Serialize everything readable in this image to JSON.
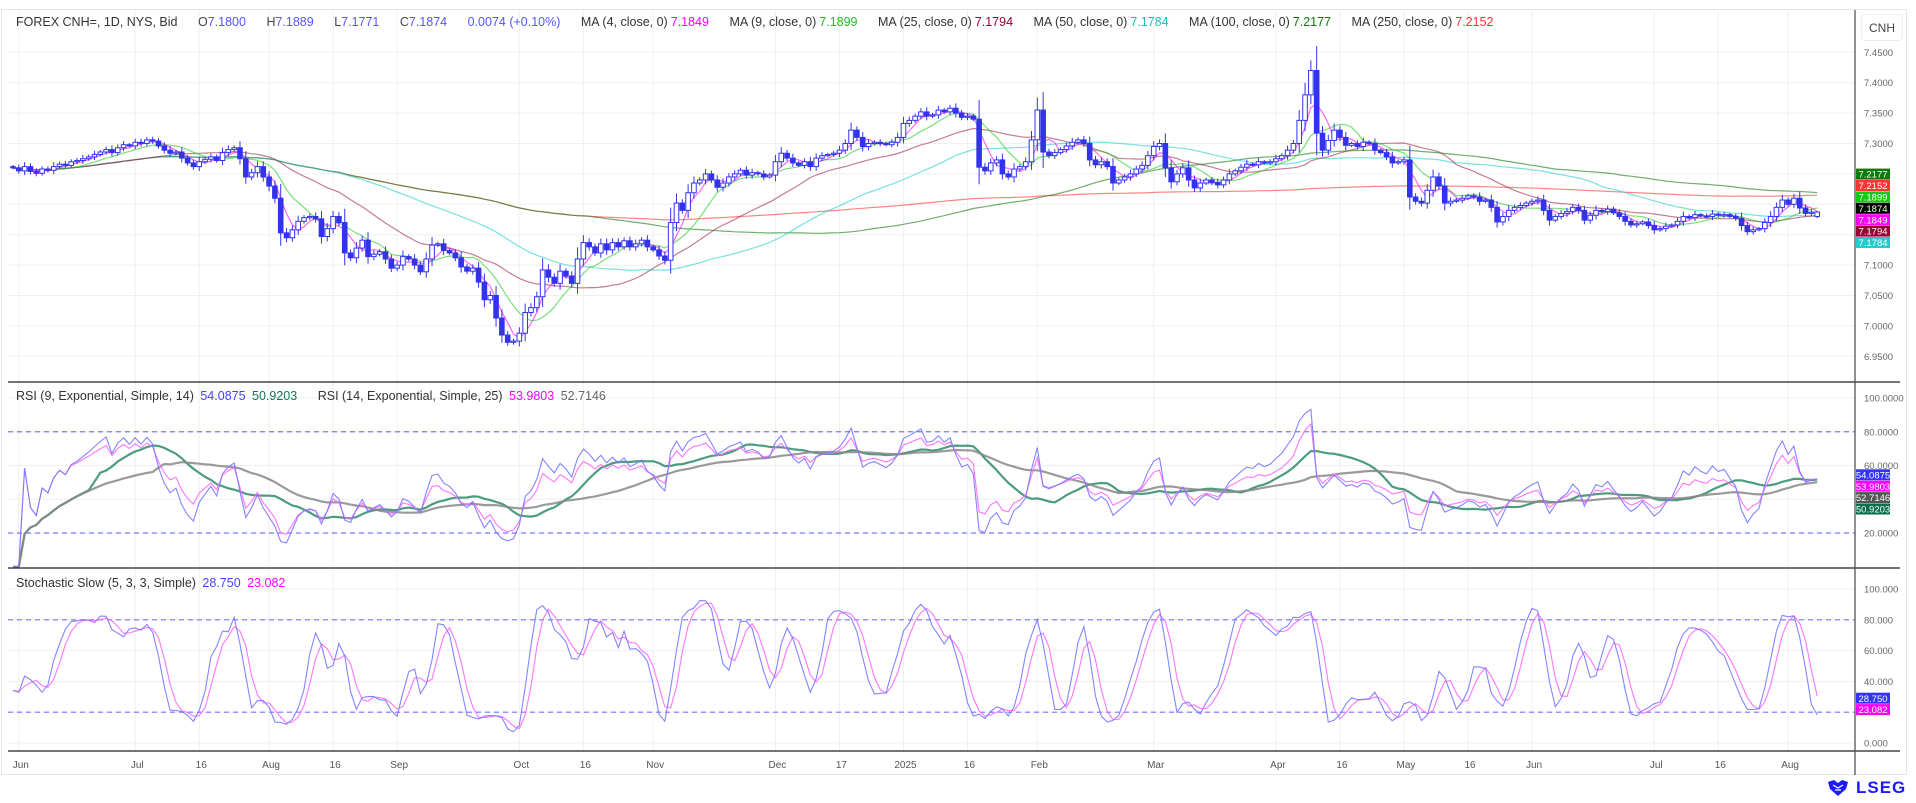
{
  "legend": {
    "symbol": "FOREX CNH=, 1D, NYS, Bid",
    "open_label": "O",
    "open": "7.1800",
    "high_label": "H",
    "high": "7.1889",
    "low_label": "L",
    "low": "7.1771",
    "close_label": "C",
    "close": "7.1874",
    "change": "0.0074 (+0.10%)",
    "ma": [
      {
        "label": "MA (4, close, 0)",
        "value": "7.1849",
        "color": "#ff00ff"
      },
      {
        "label": "MA (9, close, 0)",
        "value": "7.1899",
        "color": "#22cc22"
      },
      {
        "label": "MA (25, close, 0)",
        "value": "7.1794",
        "color": "#990033"
      },
      {
        "label": "MA (50, close, 0)",
        "value": "7.1784",
        "color": "#22cccc"
      },
      {
        "label": "MA (100, close, 0)",
        "value": "7.2177",
        "color": "#117711"
      },
      {
        "label": "MA (250, close, 0)",
        "value": "7.2152",
        "color": "#ff3333"
      }
    ],
    "rsi": [
      {
        "label": "RSI (9, Exponential, Simple, 14)",
        "value": "54.0875",
        "value_color": "#4444ff",
        "signal": "50.9203",
        "signal_color": "#0b7a55"
      },
      {
        "label": "RSI (14, Exponential, Simple, 25)",
        "value": "53.9803",
        "value_color": "#ff00ff",
        "signal": "52.7146",
        "signal_color": "#666666"
      }
    ],
    "stoch": {
      "label": "Stochastic Slow (5, 3, 3, Simple)",
      "k": "28.750",
      "k_color": "#4444ff",
      "d": "23.082",
      "d_color": "#ff00ff"
    }
  },
  "currency_button": "CNH",
  "logo_text": "LSEG",
  "chart_data": {
    "type": "candlestick",
    "xlim": [
      "2024-05-31",
      "2025-08-08"
    ],
    "price_ylim": [
      6.93,
      7.47
    ],
    "price_ticks": [
      "7.4500",
      "7.4000",
      "7.3500",
      "7.3000",
      "7.1000",
      "7.0500",
      "7.0000",
      "6.9500"
    ],
    "last_bar": {
      "open": 7.18,
      "high": 7.1889,
      "low": 7.1771,
      "close": 7.1874
    },
    "up_color": "#ffffff",
    "down_color": "#3333ee",
    "close": [
      7.26,
      7.255,
      7.262,
      7.254,
      7.251,
      7.258,
      7.256,
      7.262,
      7.266,
      7.264,
      7.27,
      7.272,
      7.275,
      7.278,
      7.282,
      7.286,
      7.29,
      7.285,
      7.293,
      7.298,
      7.296,
      7.302,
      7.3,
      7.306,
      7.304,
      7.296,
      7.289,
      7.284,
      7.286,
      7.276,
      7.268,
      7.262,
      7.27,
      7.274,
      7.278,
      7.272,
      7.285,
      7.29,
      7.293,
      7.275,
      7.245,
      7.252,
      7.262,
      7.245,
      7.23,
      7.21,
      7.153,
      7.145,
      7.158,
      7.172,
      7.178,
      7.18,
      7.176,
      7.147,
      7.16,
      7.18,
      7.17,
      7.12,
      7.112,
      7.128,
      7.141,
      7.114,
      7.118,
      7.122,
      7.11,
      7.095,
      7.1,
      7.114,
      7.11,
      7.1,
      7.089,
      7.11,
      7.133,
      7.135,
      7.124,
      7.12,
      7.112,
      7.097,
      7.09,
      7.095,
      7.072,
      7.043,
      7.05,
      7.013,
      6.985,
      6.973,
      6.975,
      6.988,
      7.022,
      7.03,
      7.048,
      7.092,
      7.08,
      7.07,
      7.09,
      7.082,
      7.07,
      7.11,
      7.137,
      7.13,
      7.12,
      7.135,
      7.125,
      7.137,
      7.13,
      7.14,
      7.13,
      7.135,
      7.141,
      7.13,
      7.125,
      7.115,
      7.108,
      7.17,
      7.202,
      7.19,
      7.219,
      7.235,
      7.24,
      7.25,
      7.24,
      7.228,
      7.235,
      7.245,
      7.25,
      7.256,
      7.248,
      7.252,
      7.25,
      7.245,
      7.248,
      7.27,
      7.284,
      7.276,
      7.268,
      7.264,
      7.27,
      7.262,
      7.276,
      7.28,
      7.282,
      7.284,
      7.289,
      7.3,
      7.322,
      7.31,
      7.295,
      7.3,
      7.302,
      7.3,
      7.298,
      7.302,
      7.31,
      7.333,
      7.338,
      7.345,
      7.352,
      7.345,
      7.347,
      7.355,
      7.352,
      7.358,
      7.35,
      7.343,
      7.345,
      7.34,
      7.261,
      7.255,
      7.268,
      7.273,
      7.25,
      7.245,
      7.258,
      7.262,
      7.27,
      7.306,
      7.355,
      7.286,
      7.28,
      7.285,
      7.29,
      7.296,
      7.302,
      7.306,
      7.3,
      7.273,
      7.265,
      7.27,
      7.262,
      7.235,
      7.24,
      7.245,
      7.25,
      7.258,
      7.264,
      7.28,
      7.295,
      7.3,
      7.26,
      7.237,
      7.25,
      7.26,
      7.24,
      7.227,
      7.235,
      7.24,
      7.236,
      7.232,
      7.24,
      7.25,
      7.255,
      7.261,
      7.266,
      7.265,
      7.27,
      7.268,
      7.27,
      7.275,
      7.28,
      7.289,
      7.3,
      7.338,
      7.38,
      7.42,
      7.317,
      7.289,
      7.305,
      7.322,
      7.31,
      7.297,
      7.3,
      7.295,
      7.302,
      7.3,
      7.289,
      7.285,
      7.278,
      7.268,
      7.27,
      7.273,
      7.212,
      7.205,
      7.202,
      7.223,
      7.245,
      7.23,
      7.202,
      7.205,
      7.207,
      7.21,
      7.214,
      7.212,
      7.205,
      7.207,
      7.195,
      7.171,
      7.18,
      7.19,
      7.195,
      7.198,
      7.202,
      7.205,
      7.207,
      7.19,
      7.174,
      7.18,
      7.185,
      7.188,
      7.195,
      7.19,
      7.174,
      7.182,
      7.19,
      7.188,
      7.192,
      7.186,
      7.18,
      7.172,
      7.166,
      7.168,
      7.171,
      7.165,
      7.158,
      7.16,
      7.164,
      7.166,
      7.172,
      7.18,
      7.178,
      7.183,
      7.181,
      7.18,
      7.184,
      7.182,
      7.183,
      7.18,
      7.177,
      7.165,
      7.155,
      7.158,
      7.16,
      7.17,
      7.18,
      7.195,
      7.207,
      7.2,
      7.21,
      7.194,
      7.185,
      7.187,
      7.1874
    ],
    "moving_averages": [
      {
        "period": 4,
        "color": "#ff00ff",
        "last": 7.1849
      },
      {
        "period": 9,
        "color": "#22cc22",
        "last": 7.1899
      },
      {
        "period": 25,
        "color": "#a02848",
        "last": 7.1794
      },
      {
        "period": 50,
        "color": "#22cccc",
        "last": 7.1784
      },
      {
        "period": 100,
        "color": "#117711",
        "last": 7.2177
      },
      {
        "period": 250,
        "color": "#ff3333",
        "last": 7.2152
      }
    ],
    "close_badge_color": "#000000",
    "rsi": {
      "ylim": [
        0,
        100
      ],
      "ticks": [
        "100.0000",
        "80.0000",
        "60.0000",
        "20.0000"
      ],
      "bands": [
        80,
        20
      ],
      "band_color": "#7777ff",
      "series": [
        {
          "period": 9,
          "color": "#7777ff",
          "last": 54.0875,
          "signal_period": 14,
          "signal_color": "#2e8b67",
          "signal_last": 50.9203
        },
        {
          "period": 14,
          "color": "#ff66ff",
          "last": 53.9803,
          "signal_period": 25,
          "signal_color": "#888888",
          "signal_last": 52.7146
        }
      ],
      "badges": [
        {
          "value": "54.0875",
          "color": "#3333ff"
        },
        {
          "value": "53.9803",
          "color": "#ff00ff"
        },
        {
          "value": "52.7146",
          "color": "#555555"
        },
        {
          "value": "50.9203",
          "color": "#0a6e4a"
        }
      ]
    },
    "stochastic": {
      "ylim": [
        0,
        100
      ],
      "ticks": [
        "100.000",
        "80.000",
        "60.000",
        "40.000",
        "0.000"
      ],
      "bands": [
        80,
        20
      ],
      "k_period": 5,
      "k_smooth": 3,
      "d_period": 3,
      "k_color": "#7777ff",
      "d_color": "#ff66ff",
      "badges": [
        {
          "value": "28.750",
          "color": "#3333ff"
        },
        {
          "value": "23.082",
          "color": "#ff00ff"
        }
      ]
    },
    "x_ticks": [
      {
        "label": "Jun",
        "date": "2024-06-03"
      },
      {
        "label": "Jul",
        "date": "2024-07-01"
      },
      {
        "label": "16",
        "date": "2024-07-16"
      },
      {
        "label": "Aug",
        "date": "2024-08-01"
      },
      {
        "label": "16",
        "date": "2024-08-16"
      },
      {
        "label": "Sep",
        "date": "2024-09-02"
      },
      {
        "label": "Oct",
        "date": "2024-10-01"
      },
      {
        "label": "16",
        "date": "2024-10-16"
      },
      {
        "label": "Nov",
        "date": "2024-11-01"
      },
      {
        "label": "Dec",
        "date": "2024-12-02"
      },
      {
        "label": "17",
        "date": "2024-12-17"
      },
      {
        "label": "2025",
        "date": "2025-01-01"
      },
      {
        "label": "16",
        "date": "2025-01-16"
      },
      {
        "label": "Feb",
        "date": "2025-02-03"
      },
      {
        "label": "Mar",
        "date": "2025-03-03"
      },
      {
        "label": "Apr",
        "date": "2025-04-01"
      },
      {
        "label": "16",
        "date": "2025-04-16"
      },
      {
        "label": "May",
        "date": "2025-05-01"
      },
      {
        "label": "16",
        "date": "2025-05-16"
      },
      {
        "label": "Jun",
        "date": "2025-06-02"
      },
      {
        "label": "Jul",
        "date": "2025-07-01"
      },
      {
        "label": "16",
        "date": "2025-07-16"
      },
      {
        "label": "Aug",
        "date": "2025-08-01"
      }
    ],
    "grid": true
  }
}
